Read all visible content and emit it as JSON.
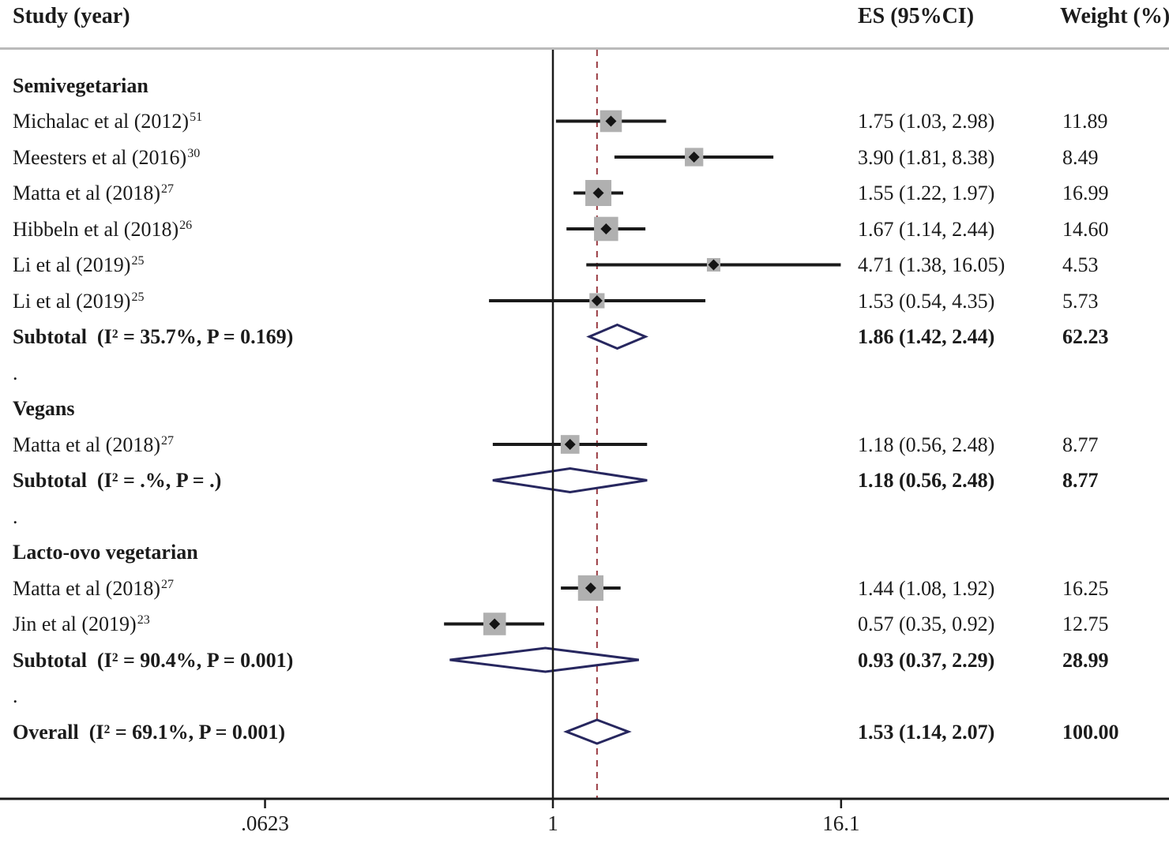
{
  "header": {
    "study": "Study (year)",
    "es": "ES (95%CI)",
    "weight": "Weight (%)"
  },
  "chart_data": {
    "type": "forest",
    "x_scale": "log",
    "null_value": 1,
    "reference_line": 1.53,
    "x_ticks": [
      {
        "label": ".0623",
        "value": 0.0623
      },
      {
        "label": "1",
        "value": 1
      },
      {
        "label": "16.1",
        "value": 16.1
      }
    ],
    "colors": {
      "ci": "#1a1a1a",
      "square": "#b0b0b0",
      "point": "#141414",
      "diamond": "#27275f",
      "ref_line": "#9a3b42",
      "axis": "#1a1a1a"
    },
    "rows": [
      {
        "type": "group",
        "label": "Semivegetarian"
      },
      {
        "type": "study",
        "label": "Michalac et al (2012)",
        "ref": "51",
        "es": 1.75,
        "lo": 1.03,
        "hi": 2.98,
        "es_text": "1.75 (1.03, 2.98)",
        "weight": "11.89"
      },
      {
        "type": "study",
        "label": "Meesters et al (2016)",
        "ref": "30",
        "es": 3.9,
        "lo": 1.81,
        "hi": 8.38,
        "es_text": "3.90 (1.81, 8.38)",
        "weight": "8.49"
      },
      {
        "type": "study",
        "label": "Matta et al (2018)",
        "ref": "27",
        "es": 1.55,
        "lo": 1.22,
        "hi": 1.97,
        "es_text": "1.55 (1.22, 1.97)",
        "weight": "16.99"
      },
      {
        "type": "study",
        "label": "Hibbeln et al (2018)",
        "ref": "26",
        "es": 1.67,
        "lo": 1.14,
        "hi": 2.44,
        "es_text": "1.67 (1.14, 2.44)",
        "weight": "14.60"
      },
      {
        "type": "study",
        "label": "Li et al (2019)",
        "ref": "25",
        "es": 4.71,
        "lo": 1.38,
        "hi": 16.05,
        "es_text": "4.71 (1.38, 16.05)",
        "weight": "4.53"
      },
      {
        "type": "study",
        "label": "Li et al (2019)",
        "ref": "25",
        "es": 1.53,
        "lo": 0.54,
        "hi": 4.35,
        "es_text": "1.53 (0.54, 4.35)",
        "weight": "5.73"
      },
      {
        "type": "subtotal",
        "label": "Subtotal  (I² = 35.7%, P = 0.169)",
        "es": 1.86,
        "lo": 1.42,
        "hi": 2.44,
        "es_text": "1.86 (1.42, 2.44)",
        "weight": "62.23"
      },
      {
        "type": "spacer",
        "label": "."
      },
      {
        "type": "group",
        "label": "Vegans"
      },
      {
        "type": "study",
        "label": "Matta et al (2018)",
        "ref": "27",
        "es": 1.18,
        "lo": 0.56,
        "hi": 2.48,
        "es_text": "1.18 (0.56, 2.48)",
        "weight": "8.77"
      },
      {
        "type": "subtotal",
        "label": "Subtotal  (I² = .%, P = .)",
        "es": 1.18,
        "lo": 0.56,
        "hi": 2.48,
        "es_text": "1.18 (0.56, 2.48)",
        "weight": "8.77"
      },
      {
        "type": "spacer",
        "label": "."
      },
      {
        "type": "group",
        "label": "Lacto-ovo vegetarian"
      },
      {
        "type": "study",
        "label": "Matta et al (2018)",
        "ref": "27",
        "es": 1.44,
        "lo": 1.08,
        "hi": 1.92,
        "es_text": "1.44 (1.08, 1.92)",
        "weight": "16.25"
      },
      {
        "type": "study",
        "label": "Jin et al (2019)",
        "ref": "23",
        "es": 0.57,
        "lo": 0.35,
        "hi": 0.92,
        "es_text": "0.57 (0.35, 0.92)",
        "weight": "12.75"
      },
      {
        "type": "subtotal",
        "label": "Subtotal  (I² = 90.4%, P = 0.001)",
        "es": 0.93,
        "lo": 0.37,
        "hi": 2.29,
        "es_text": "0.93 (0.37, 2.29)",
        "weight": "28.99"
      },
      {
        "type": "spacer",
        "label": "."
      },
      {
        "type": "overall",
        "label": "Overall  (I² = 69.1%, P = 0.001)",
        "es": 1.53,
        "lo": 1.14,
        "hi": 2.07,
        "es_text": "1.53 (1.14, 2.07)",
        "weight": "100.00"
      }
    ]
  }
}
